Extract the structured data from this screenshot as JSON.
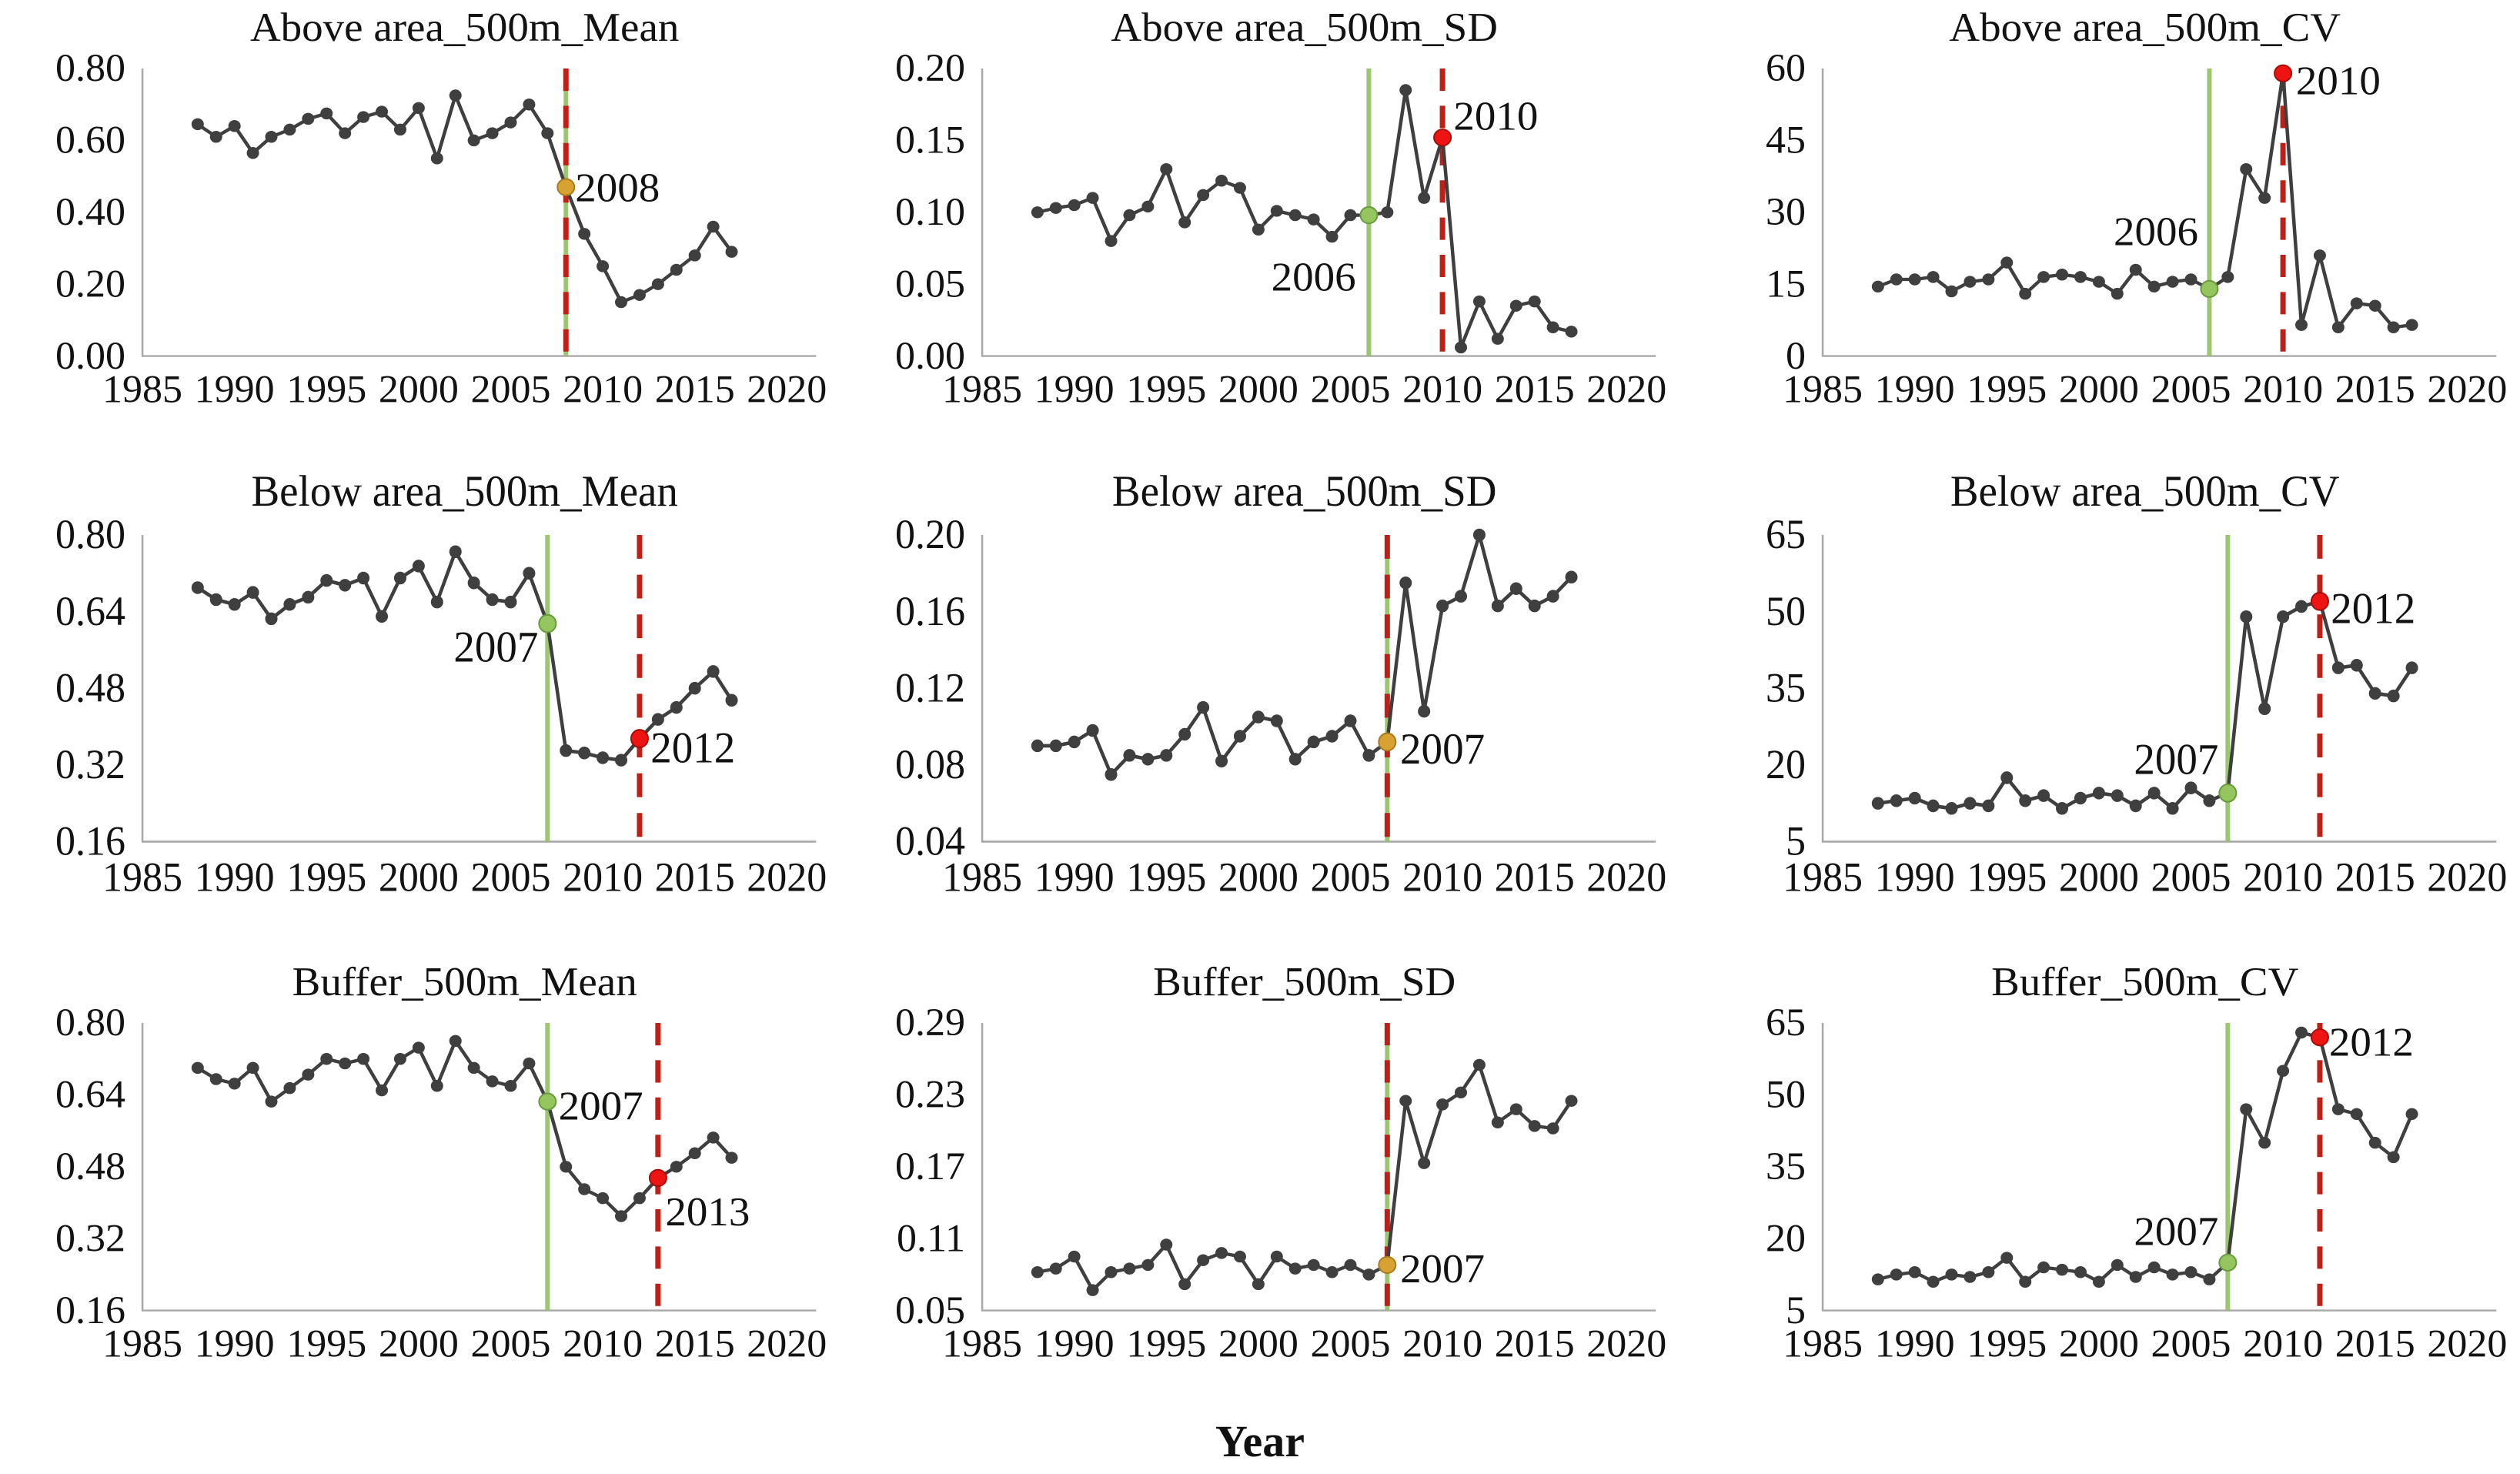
{
  "figure": {
    "x_axis_label": "Year",
    "x_min": 1985,
    "x_max": 2020,
    "x_ticks": [
      "1985",
      "1990",
      "1995",
      "2000",
      "2005",
      "2010",
      "2015",
      "2020"
    ],
    "years": [
      1988,
      1989,
      1990,
      1991,
      1992,
      1993,
      1994,
      1995,
      1996,
      1997,
      1998,
      1999,
      2000,
      2001,
      2002,
      2003,
      2004,
      2005,
      2006,
      2007,
      2008,
      2009,
      2010,
      2011,
      2012,
      2013,
      2014,
      2015,
      2016,
      2017
    ],
    "colors": {
      "series_line": "#3f3f3f",
      "marker": "#3f3f3f",
      "green_line": "#92c162",
      "red_line": "#c01f15",
      "green_dot": "#95c55f",
      "green_dot_stroke": "#699a3c",
      "red_dot": "#ee1414",
      "red_dot_stroke": "#a80c08",
      "orange_dot": "#d8a233",
      "orange_dot_stroke": "#a87b1f",
      "axis": "#a8a8a8",
      "text": "#121212"
    }
  },
  "chart_data": [
    {
      "type": "line",
      "title": "Above area_500m_Mean",
      "ylim": [
        0,
        0.8
      ],
      "y_ticks": [
        "0.00",
        "0.20",
        "0.40",
        "0.60",
        "0.80"
      ],
      "values": [
        0.645,
        0.61,
        0.64,
        0.565,
        0.61,
        0.63,
        0.66,
        0.675,
        0.62,
        0.665,
        0.68,
        0.63,
        0.69,
        0.55,
        0.725,
        0.6,
        0.62,
        0.65,
        0.7,
        0.62,
        0.47,
        0.34,
        0.25,
        0.15,
        0.17,
        0.2,
        0.24,
        0.28,
        0.36,
        0.29
      ],
      "breakpoints": {
        "green_line_year": 2008,
        "red_line_year": 2008,
        "dots": [
          {
            "year": 2008,
            "value": 0.47,
            "color": "orange"
          }
        ],
        "labels": [
          {
            "text": "2008",
            "x": 2008.5,
            "y": 0.468,
            "anchor": "start"
          }
        ]
      }
    },
    {
      "type": "line",
      "title": "Above area_500m_SD",
      "ylim": [
        0,
        0.2
      ],
      "y_ticks": [
        "0.00",
        "0.05",
        "0.10",
        "0.15",
        "0.20"
      ],
      "values": [
        0.1,
        0.103,
        0.105,
        0.11,
        0.08,
        0.098,
        0.104,
        0.13,
        0.093,
        0.112,
        0.122,
        0.117,
        0.088,
        0.101,
        0.098,
        0.095,
        0.083,
        0.098,
        0.098,
        0.1,
        0.185,
        0.11,
        0.152,
        0.006,
        0.038,
        0.012,
        0.035,
        0.038,
        0.02,
        0.017
      ],
      "breakpoints": {
        "green_line_year": 2006,
        "red_line_year": 2010,
        "dots": [
          {
            "year": 2006,
            "value": 0.098,
            "color": "green"
          },
          {
            "year": 2010,
            "value": 0.152,
            "color": "red"
          }
        ],
        "labels": [
          {
            "text": "2006",
            "x": 2005.3,
            "y": 0.055,
            "anchor": "end"
          },
          {
            "text": "2010",
            "x": 2010.6,
            "y": 0.167,
            "anchor": "start"
          }
        ]
      }
    },
    {
      "type": "line",
      "title": "Above area_500m_CV",
      "ylim": [
        0,
        60
      ],
      "y_ticks": [
        "0",
        "15",
        "30",
        "45",
        "60"
      ],
      "values": [
        14.5,
        16,
        16,
        16.5,
        13.5,
        15.5,
        16,
        19.5,
        13,
        16.5,
        17,
        16.5,
        15.5,
        13,
        18,
        14.5,
        15.5,
        16,
        14,
        16.5,
        39,
        33,
        59,
        6.5,
        21,
        6,
        11,
        10.5,
        6,
        6.5
      ],
      "breakpoints": {
        "green_line_year": 2006,
        "red_line_year": 2010,
        "dots": [
          {
            "year": 2006,
            "value": 14,
            "color": "green"
          },
          {
            "year": 2010,
            "value": 59,
            "color": "red"
          }
        ],
        "labels": [
          {
            "text": "2006",
            "x": 2005.4,
            "y": 26,
            "anchor": "end"
          },
          {
            "text": "2010",
            "x": 2010.7,
            "y": 57.5,
            "anchor": "start"
          }
        ]
      }
    },
    {
      "type": "line",
      "title": "Below area_500m_Mean",
      "ylim": [
        0.16,
        0.8
      ],
      "y_ticks": [
        "0.16",
        "0.32",
        "0.48",
        "0.64",
        "0.80"
      ],
      "values": [
        0.69,
        0.665,
        0.655,
        0.68,
        0.625,
        0.655,
        0.67,
        0.705,
        0.695,
        0.71,
        0.63,
        0.71,
        0.735,
        0.66,
        0.765,
        0.7,
        0.665,
        0.66,
        0.72,
        0.615,
        0.35,
        0.345,
        0.335,
        0.33,
        0.375,
        0.415,
        0.44,
        0.48,
        0.515,
        0.455
      ],
      "breakpoints": {
        "green_line_year": 2007,
        "red_line_year": 2012,
        "dots": [
          {
            "year": 2007,
            "value": 0.615,
            "color": "green"
          },
          {
            "year": 2012,
            "value": 0.375,
            "color": "red"
          }
        ],
        "labels": [
          {
            "text": "2007",
            "x": 2006.5,
            "y": 0.565,
            "anchor": "end"
          },
          {
            "text": "2012",
            "x": 2012.6,
            "y": 0.355,
            "anchor": "start"
          }
        ]
      }
    },
    {
      "type": "line",
      "title": "Below area_500m_SD",
      "ylim": [
        0.04,
        0.2
      ],
      "y_ticks": [
        "0.04",
        "0.08",
        "0.12",
        "0.16",
        "0.20"
      ],
      "values": [
        0.09,
        0.09,
        0.092,
        0.098,
        0.075,
        0.085,
        0.083,
        0.085,
        0.096,
        0.11,
        0.082,
        0.095,
        0.105,
        0.103,
        0.083,
        0.092,
        0.095,
        0.103,
        0.085,
        0.092,
        0.175,
        0.108,
        0.163,
        0.168,
        0.2,
        0.163,
        0.172,
        0.163,
        0.168,
        0.178
      ],
      "breakpoints": {
        "green_line_year": 2007,
        "red_line_year": 2007,
        "dots": [
          {
            "year": 2007,
            "value": 0.092,
            "color": "orange"
          }
        ],
        "labels": [
          {
            "text": "2007",
            "x": 2007.7,
            "y": 0.088,
            "anchor": "start"
          }
        ]
      }
    },
    {
      "type": "line",
      "title": "Below area_500m_CV",
      "ylim": [
        5,
        65
      ],
      "y_ticks": [
        "5",
        "20",
        "35",
        "50",
        "65"
      ],
      "values": [
        12.5,
        13,
        13.5,
        12,
        11.5,
        12.5,
        12,
        17.5,
        13,
        14,
        11.5,
        13.5,
        14.5,
        14,
        12,
        14.5,
        11.5,
        15.5,
        13,
        14.5,
        49,
        31,
        49,
        51,
        52,
        39,
        39.5,
        34,
        33.5,
        39
      ],
      "breakpoints": {
        "green_line_year": 2007,
        "red_line_year": 2012,
        "dots": [
          {
            "year": 2007,
            "value": 14.5,
            "color": "green"
          },
          {
            "year": 2012,
            "value": 52,
            "color": "red"
          }
        ],
        "labels": [
          {
            "text": "2007",
            "x": 2006.5,
            "y": 21,
            "anchor": "end"
          },
          {
            "text": "2012",
            "x": 2012.6,
            "y": 50.5,
            "anchor": "start"
          }
        ]
      }
    },
    {
      "type": "line",
      "title": "Buffer_500m_Mean",
      "ylim": [
        0.16,
        0.8
      ],
      "y_ticks": [
        "0.16",
        "0.32",
        "0.48",
        "0.64",
        "0.80"
      ],
      "values": [
        0.7,
        0.675,
        0.665,
        0.7,
        0.625,
        0.655,
        0.685,
        0.72,
        0.71,
        0.72,
        0.65,
        0.72,
        0.745,
        0.66,
        0.76,
        0.7,
        0.67,
        0.66,
        0.71,
        0.625,
        0.48,
        0.43,
        0.41,
        0.37,
        0.41,
        0.455,
        0.48,
        0.51,
        0.545,
        0.5
      ],
      "breakpoints": {
        "green_line_year": 2007,
        "red_line_year": 2013,
        "dots": [
          {
            "year": 2007,
            "value": 0.625,
            "color": "green"
          },
          {
            "year": 2013,
            "value": 0.455,
            "color": "red"
          }
        ],
        "labels": [
          {
            "text": "2007",
            "x": 2007.6,
            "y": 0.615,
            "anchor": "start"
          },
          {
            "text": "2013",
            "x": 2013.4,
            "y": 0.38,
            "anchor": "start"
          }
        ]
      }
    },
    {
      "type": "line",
      "title": "Buffer_500m_SD",
      "ylim": [
        0.05,
        0.29
      ],
      "y_ticks": [
        "0.05",
        "0.11",
        "0.17",
        "0.23",
        "0.29"
      ],
      "values": [
        0.082,
        0.085,
        0.095,
        0.067,
        0.082,
        0.085,
        0.088,
        0.105,
        0.072,
        0.092,
        0.098,
        0.095,
        0.072,
        0.095,
        0.085,
        0.088,
        0.082,
        0.088,
        0.08,
        0.088,
        0.225,
        0.173,
        0.222,
        0.232,
        0.255,
        0.207,
        0.218,
        0.204,
        0.202,
        0.225
      ],
      "breakpoints": {
        "green_line_year": 2007,
        "red_line_year": 2007,
        "dots": [
          {
            "year": 2007,
            "value": 0.088,
            "color": "orange"
          }
        ],
        "labels": [
          {
            "text": "2007",
            "x": 2007.7,
            "y": 0.085,
            "anchor": "start"
          }
        ]
      }
    },
    {
      "type": "line",
      "title": "Buffer_500m_CV",
      "ylim": [
        5,
        65
      ],
      "y_ticks": [
        "5",
        "20",
        "35",
        "50",
        "65"
      ],
      "values": [
        11.5,
        12.5,
        13,
        11,
        12.5,
        12,
        13,
        16,
        11,
        14,
        13.5,
        13,
        11,
        14.5,
        12,
        14,
        12.5,
        13,
        11.5,
        15,
        47,
        40,
        55,
        63,
        62,
        47,
        46,
        40,
        37,
        46
      ],
      "breakpoints": {
        "green_line_year": 2007,
        "red_line_year": 2012,
        "dots": [
          {
            "year": 2007,
            "value": 15,
            "color": "green"
          },
          {
            "year": 2012,
            "value": 62,
            "color": "red"
          }
        ],
        "labels": [
          {
            "text": "2007",
            "x": 2006.5,
            "y": 21.5,
            "anchor": "end"
          },
          {
            "text": "2012",
            "x": 2012.5,
            "y": 61,
            "anchor": "start"
          }
        ]
      }
    }
  ]
}
